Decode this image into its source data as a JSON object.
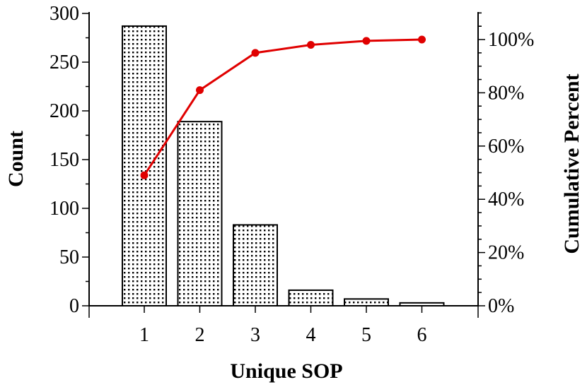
{
  "chart_data": {
    "type": "bar",
    "xlabel": "Unique SOP",
    "ylabel": "Count",
    "y2label": "Cumulative Percent",
    "categories": [
      "1",
      "2",
      "3",
      "4",
      "5",
      "6"
    ],
    "series": [
      {
        "type": "bar",
        "values": [
          287,
          189,
          83,
          16,
          7,
          3
        ]
      },
      {
        "type": "line",
        "axis": "right",
        "values": [
          49,
          81,
          95,
          98,
          99.5,
          100
        ]
      }
    ],
    "ylim": [
      0,
      300
    ],
    "y2lim": [
      0,
      100
    ],
    "yticks": [
      "0",
      "50",
      "100",
      "150",
      "200",
      "250",
      "300"
    ],
    "y2ticks": [
      "0%",
      "20%",
      "40%",
      "60%",
      "80%",
      "100%"
    ],
    "grid": false,
    "bar_pattern": "dotted",
    "colors": {
      "bar_fill_pattern": "#000000",
      "line": "#e00000"
    }
  }
}
